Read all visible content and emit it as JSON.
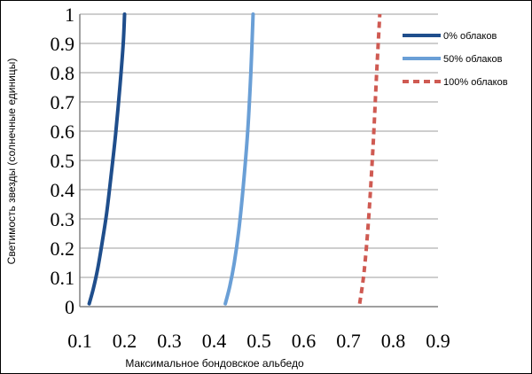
{
  "chart_data": {
    "type": "line",
    "xlabel": "Максимальное бондовское альбедо",
    "ylabel": "Светимость звезды (солнечные единицы)",
    "xlim": [
      0.1,
      0.9
    ],
    "ylim": [
      0,
      1
    ],
    "x_ticks": [
      "0.1",
      "0.2",
      "0.3",
      "0.4",
      "0.5",
      "0.6",
      "0.7",
      "0.8",
      "0.9"
    ],
    "y_ticks": [
      "0",
      "0.1",
      "0.2",
      "0.3",
      "0.4",
      "0.5",
      "0.6",
      "0.7",
      "0.8",
      "0.9",
      "1"
    ],
    "grid": "horizontal",
    "legend_position": "top-right",
    "series": [
      {
        "name": "0% облаков",
        "color": "#1f4e8c",
        "style": "solid",
        "points": [
          [
            0.121,
            0.01
          ],
          [
            0.13,
            0.06
          ],
          [
            0.14,
            0.13
          ],
          [
            0.15,
            0.22
          ],
          [
            0.16,
            0.32
          ],
          [
            0.17,
            0.45
          ],
          [
            0.18,
            0.59
          ],
          [
            0.19,
            0.76
          ],
          [
            0.197,
            0.9
          ],
          [
            0.2,
            1.0
          ]
        ]
      },
      {
        "name": "50% облаков",
        "color": "#6a9fd6",
        "style": "solid",
        "points": [
          [
            0.425,
            0.01
          ],
          [
            0.435,
            0.07
          ],
          [
            0.445,
            0.15
          ],
          [
            0.455,
            0.26
          ],
          [
            0.465,
            0.41
          ],
          [
            0.475,
            0.6
          ],
          [
            0.482,
            0.8
          ],
          [
            0.487,
            1.0
          ]
        ]
      },
      {
        "name": "100% облаков",
        "color": "#cf5a52",
        "style": "dashed",
        "points": [
          [
            0.725,
            0.01
          ],
          [
            0.735,
            0.12
          ],
          [
            0.745,
            0.3
          ],
          [
            0.755,
            0.55
          ],
          [
            0.763,
            0.8
          ],
          [
            0.77,
            1.0
          ]
        ]
      }
    ]
  }
}
